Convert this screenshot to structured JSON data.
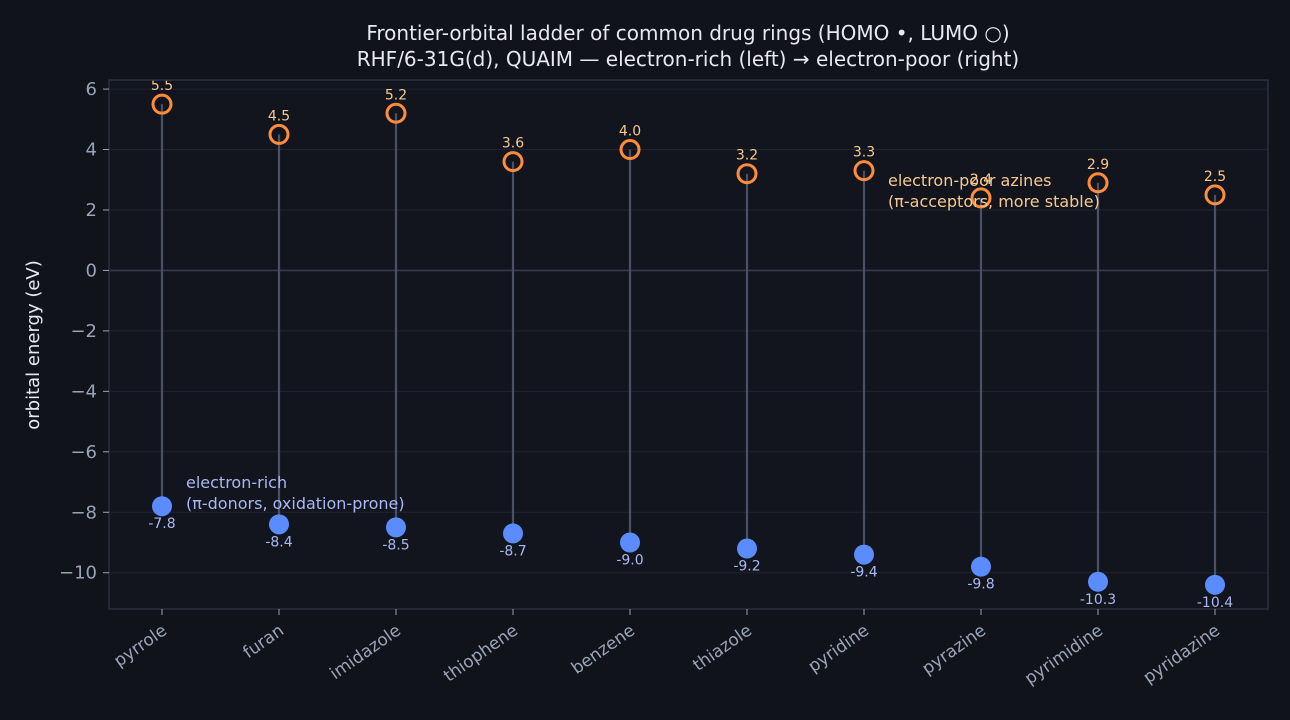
{
  "chart_data": {
    "type": "scatter",
    "title": "Frontier-orbital ladder of common drug rings  (HOMO •, LUMO ○)",
    "subtitle": "RHF/6-31G(d), QUAIM  —  electron-rich (left)  →  electron-poor (right)",
    "ylabel": "orbital energy (eV)",
    "ylim": [
      -11.2,
      6.3
    ],
    "yticks": [
      6,
      4,
      2,
      0,
      -2,
      -4,
      -6,
      -8,
      -10
    ],
    "ytick_labels": [
      "6",
      "4",
      "2",
      "0",
      "−2",
      "−4",
      "−6",
      "−8",
      "−10"
    ],
    "grid": true,
    "categories": [
      "pyrrole",
      "furan",
      "imidazole",
      "thiophene",
      "benzene",
      "thiazole",
      "pyridine",
      "pyrazine",
      "pyrimidine",
      "pyridazine"
    ],
    "series": [
      {
        "name": "HOMO",
        "marker": "filled",
        "color": "#5b8cff",
        "values": [
          -7.8,
          -8.4,
          -8.5,
          -8.7,
          -9.0,
          -9.2,
          -9.4,
          -9.8,
          -10.3,
          -10.4
        ],
        "labels": [
          "-7.8",
          "-8.4",
          "-8.5",
          "-8.7",
          "-9.0",
          "-9.2",
          "-9.4",
          "-9.8",
          "-10.3",
          "-10.4"
        ]
      },
      {
        "name": "LUMO",
        "marker": "hollow",
        "color": "#ff8c3a",
        "values": [
          5.5,
          4.5,
          5.2,
          3.6,
          4.0,
          3.2,
          3.3,
          2.4,
          2.9,
          2.5
        ],
        "labels": [
          "5.5",
          "4.5",
          "5.2",
          "3.6",
          "4.0",
          "3.2",
          "3.3",
          "2.4",
          "2.9",
          "2.5"
        ]
      }
    ],
    "annotations": [
      {
        "id": "electron-rich",
        "lines": [
          "electron-rich",
          "(π-donors, oxidation-prone)"
        ],
        "anchor_category": "pyrrole",
        "anchor_y": -7.2,
        "color": "#a9b8f2"
      },
      {
        "id": "electron-poor",
        "lines": [
          "electron-poor azines",
          "(π-acceptors, more stable)"
        ],
        "anchor_category": "pyridine",
        "anchor_y": 2.8,
        "color": "#f6c98e"
      }
    ],
    "colors": {
      "stem": "#4a5066",
      "grid": "#1f2533",
      "zero_line": "#353c4d",
      "axes_border": "#2a3040",
      "plot_bg": "#12151d"
    }
  }
}
